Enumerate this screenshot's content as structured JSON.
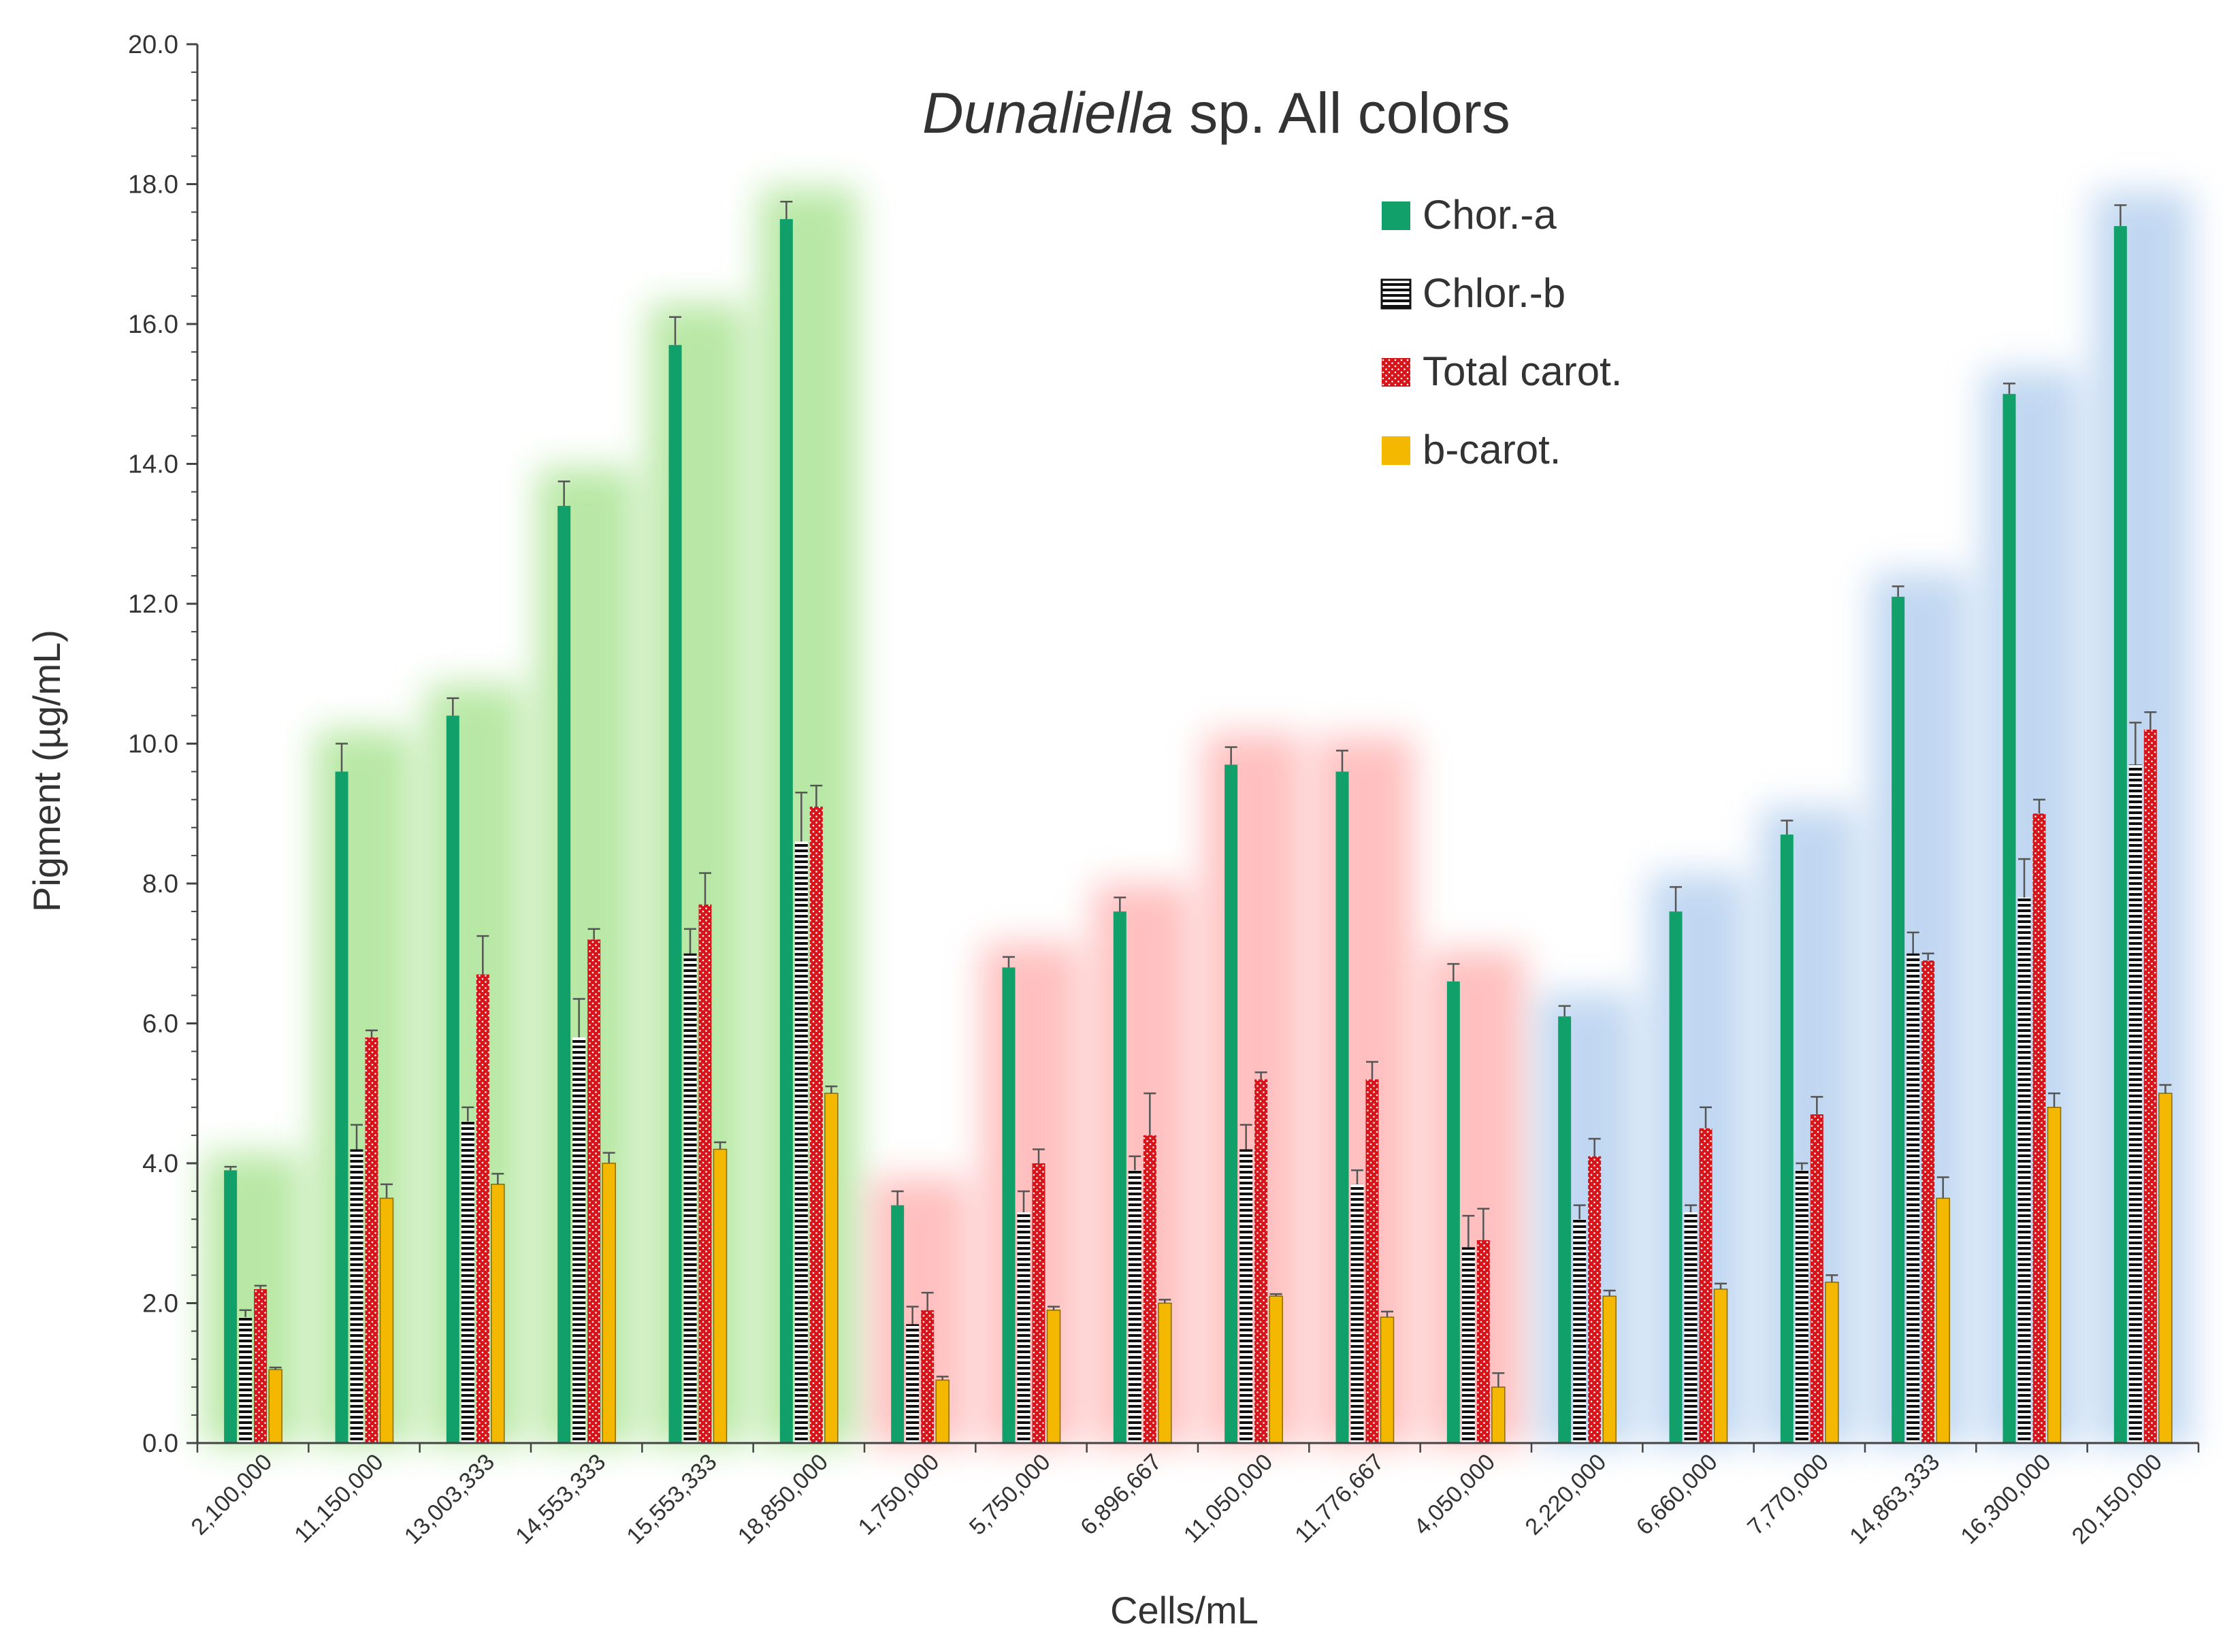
{
  "chart_data": {
    "type": "bar",
    "title_italic": "Dunaliella",
    "title_rest": " sp. All colors",
    "xlabel": "Cells/mL",
    "ylabel": "Pigment (µg/mL)",
    "ylim": [
      0,
      20
    ],
    "yticks": [
      "0.0",
      "2.0",
      "4.0",
      "6.0",
      "8.0",
      "10.0",
      "12.0",
      "14.0",
      "16.0",
      "18.0",
      "20.0"
    ],
    "categories": [
      "2,100,000",
      "11,150,000",
      "13,003,333",
      "14,553,333",
      "15,553,333",
      "18,850,000",
      "1,750,000",
      "5,750,000",
      "6,896,667",
      "11,050,000",
      "11,776,667",
      "4,050,000",
      "2,220,000",
      "6,660,000",
      "7,770,000",
      "14,863,333",
      "16,300,000",
      "20,150,000"
    ],
    "groups": [
      "green",
      "green",
      "green",
      "green",
      "green",
      "green",
      "red",
      "red",
      "red",
      "red",
      "red",
      "red",
      "blue",
      "blue",
      "blue",
      "blue",
      "blue",
      "blue"
    ],
    "glow_colors": {
      "green": "#7fd65c",
      "red": "#ff8c8c",
      "blue": "#8fb8e6"
    },
    "series": [
      {
        "name": "Chor.-a",
        "color": "#12a06a",
        "pattern": "solid",
        "values": [
          3.9,
          9.6,
          10.4,
          13.4,
          15.7,
          17.5,
          3.4,
          6.8,
          7.6,
          9.7,
          9.6,
          6.6,
          6.1,
          7.6,
          8.7,
          12.1,
          15.0,
          17.4
        ],
        "errors": [
          0.05,
          0.4,
          0.25,
          0.35,
          0.4,
          0.25,
          0.2,
          0.15,
          0.2,
          0.25,
          0.3,
          0.25,
          0.15,
          0.35,
          0.2,
          0.15,
          0.15,
          0.3
        ]
      },
      {
        "name": "Chlor.-b",
        "color": "#111111",
        "pattern": "stripes",
        "values": [
          1.8,
          4.2,
          4.6,
          5.8,
          7.0,
          8.6,
          1.7,
          3.3,
          3.9,
          4.2,
          3.7,
          2.8,
          3.2,
          3.3,
          3.9,
          7.0,
          7.8,
          9.7
        ],
        "errors": [
          0.1,
          0.35,
          0.2,
          0.55,
          0.35,
          0.7,
          0.25,
          0.3,
          0.2,
          0.35,
          0.2,
          0.45,
          0.2,
          0.1,
          0.1,
          0.3,
          0.55,
          0.6
        ]
      },
      {
        "name": "Total carot.",
        "color": "#d7141a",
        "pattern": "dots",
        "values": [
          2.2,
          5.8,
          6.7,
          7.2,
          7.7,
          9.1,
          1.9,
          4.0,
          4.4,
          5.2,
          5.2,
          2.9,
          4.1,
          4.5,
          4.7,
          6.9,
          9.0,
          10.2
        ],
        "errors": [
          0.05,
          0.1,
          0.55,
          0.15,
          0.45,
          0.3,
          0.25,
          0.2,
          0.6,
          0.1,
          0.25,
          0.45,
          0.25,
          0.3,
          0.25,
          0.1,
          0.2,
          0.25
        ]
      },
      {
        "name": "b-carot.",
        "color": "#f5b800",
        "pattern": "solid",
        "values": [
          1.05,
          3.5,
          3.7,
          4.0,
          4.2,
          5.0,
          0.9,
          1.9,
          2.0,
          2.1,
          1.8,
          0.8,
          2.1,
          2.2,
          2.3,
          3.5,
          4.8,
          5.0
        ],
        "errors": [
          0.03,
          0.2,
          0.15,
          0.15,
          0.1,
          0.1,
          0.05,
          0.05,
          0.05,
          0.03,
          0.08,
          0.2,
          0.08,
          0.08,
          0.1,
          0.3,
          0.2,
          0.12
        ]
      }
    ],
    "legend_position": "top-right",
    "grid": false
  }
}
